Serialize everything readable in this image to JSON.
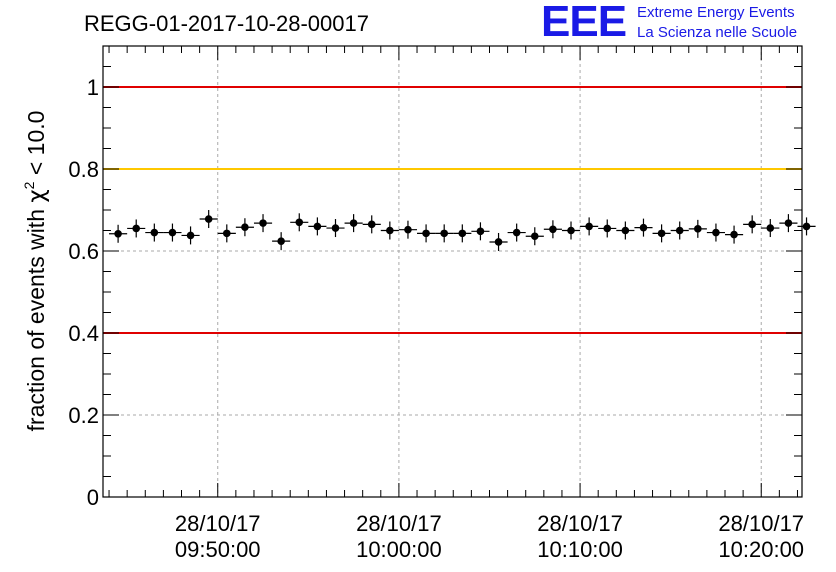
{
  "chart_data": {
    "type": "scatter",
    "title": "REGG-01-2017-10-28-00017",
    "ylabel_prefix": "fraction of events with ",
    "ylabel_symbol": "χ",
    "ylabel_exp": "2",
    "ylabel_suffix": " < 10.0",
    "ylim": [
      0,
      1.1
    ],
    "xlim": [
      "2017-10-28 09:43:40",
      "2017-10-28 10:22:15"
    ],
    "x_ticks": [
      {
        "date": "28/10/17",
        "time": "09:50:00"
      },
      {
        "date": "28/10/17",
        "time": "10:00:00"
      },
      {
        "date": "28/10/17",
        "time": "10:10:00"
      },
      {
        "date": "28/10/17",
        "time": "10:20:00"
      }
    ],
    "y_ticks": [
      "0",
      "0.2",
      "0.4",
      "0.6",
      "0.8",
      "1"
    ],
    "grid": true,
    "reference_lines": [
      {
        "y": 1.0,
        "color": "#e00000"
      },
      {
        "y": 0.8,
        "color": "#ffc800"
      },
      {
        "y": 0.4,
        "color": "#e00000"
      }
    ],
    "bin_width_seconds": 60,
    "x_start": "2017-10-28 09:44:00",
    "series": [
      {
        "values": [
          0.642,
          0.655,
          0.645,
          0.645,
          0.638,
          0.678,
          0.643,
          0.658,
          0.668,
          0.624,
          0.67,
          0.66,
          0.656,
          0.668,
          0.665,
          0.65,
          0.652,
          0.643,
          0.643,
          0.643,
          0.648,
          0.622,
          0.645,
          0.636,
          0.653,
          0.65,
          0.66,
          0.655,
          0.65,
          0.657,
          0.643,
          0.65,
          0.654,
          0.645,
          0.64,
          0.665,
          0.656,
          0.668,
          0.66
        ],
        "color": "#000000"
      }
    ]
  },
  "logo": {
    "mark": "EEE",
    "line1": "Extreme Energy Events",
    "line2": "La Scienza nelle Scuole"
  }
}
